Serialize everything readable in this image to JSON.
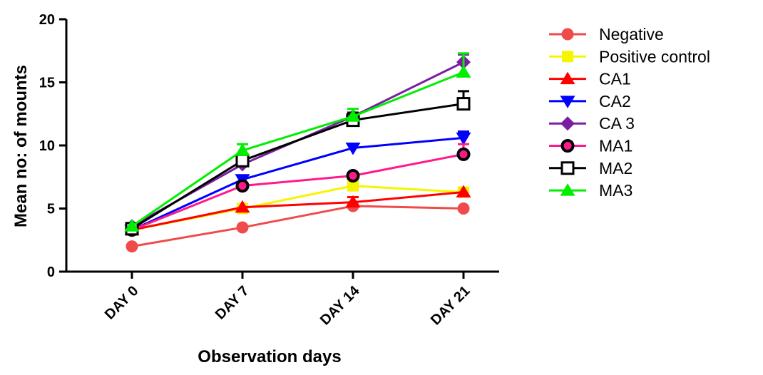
{
  "chart_data": {
    "type": "line",
    "title": "",
    "xlabel": "Observation days",
    "ylabel": "Mean no: of mounts",
    "categories": [
      "DAY 0",
      "DAY 7",
      "DAY 14",
      "DAY 21"
    ],
    "ylim": [
      0,
      20
    ],
    "yticks": [
      0,
      5,
      10,
      15,
      20
    ],
    "grid": false,
    "legend_position": "right",
    "series": [
      {
        "name": "Negative",
        "marker": "circle",
        "color": "#f04a4a",
        "values": [
          2.0,
          3.5,
          5.2,
          5.0
        ],
        "errors": [
          0,
          0,
          0,
          0
        ]
      },
      {
        "name": "Positive control",
        "marker": "square",
        "color": "#f5f500",
        "values": [
          3.3,
          5.0,
          6.8,
          6.3
        ],
        "errors": [
          0,
          0,
          0,
          0
        ]
      },
      {
        "name": "CA1",
        "marker": "triangle-up",
        "color": "#ff0000",
        "values": [
          3.3,
          5.1,
          5.5,
          6.3
        ],
        "errors": [
          0,
          0,
          0.4,
          0
        ]
      },
      {
        "name": "CA2",
        "marker": "triangle-down",
        "color": "#0000ff",
        "values": [
          3.3,
          7.3,
          9.8,
          10.6
        ],
        "errors": [
          0,
          0,
          0,
          0.5
        ]
      },
      {
        "name": "CA 3",
        "marker": "diamond",
        "color": "#7a1fa2",
        "values": [
          3.6,
          8.5,
          12.3,
          16.6
        ],
        "errors": [
          0,
          0,
          0,
          0.6
        ]
      },
      {
        "name": "MA1",
        "marker": "ring",
        "color": "#ff1a8c",
        "values": [
          3.3,
          6.8,
          7.6,
          9.3
        ],
        "errors": [
          0,
          0,
          0,
          0.8
        ]
      },
      {
        "name": "MA2",
        "marker": "open-square",
        "color": "#000000",
        "values": [
          3.4,
          8.8,
          12.0,
          13.3
        ],
        "errors": [
          0,
          0,
          0.6,
          1.0
        ]
      },
      {
        "name": "MA3",
        "marker": "triangle-up",
        "color": "#00ee00",
        "values": [
          3.6,
          9.6,
          12.3,
          15.8
        ],
        "errors": [
          0,
          0.5,
          0.6,
          1.5
        ]
      }
    ]
  }
}
